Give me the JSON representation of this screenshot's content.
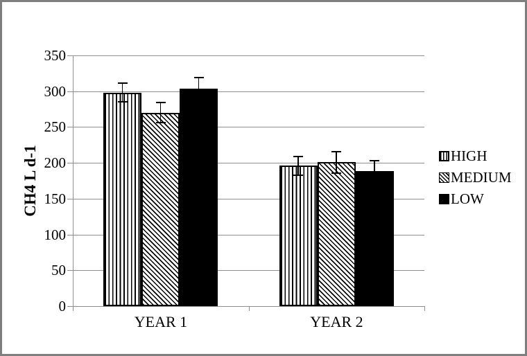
{
  "chart_data": {
    "type": "bar",
    "title": "",
    "ylabel": "CH4 L d-1",
    "xlabel": "",
    "categories": [
      "YEAR 1",
      "YEAR 2"
    ],
    "series": [
      {
        "name": "HIGH",
        "pattern": "vertical-stripes",
        "values": [
          298,
          196
        ],
        "errors": [
          13,
          13
        ]
      },
      {
        "name": "MEDIUM",
        "pattern": "diagonal-stripes",
        "values": [
          270,
          201
        ],
        "errors": [
          14,
          15
        ]
      },
      {
        "name": "LOW",
        "pattern": "solid-black",
        "values": [
          304,
          189
        ],
        "errors": [
          15,
          14
        ]
      }
    ],
    "ylim": [
      0,
      350
    ],
    "yticks": [
      0,
      50,
      100,
      150,
      200,
      250,
      300,
      350
    ],
    "grid": true,
    "error_bars": true,
    "legend_position": "right"
  },
  "colors": {
    "bar_fill": "#000000",
    "gridline": "#8e8e8e",
    "axis": "#8e8e8e",
    "frame_border": "#7f7f7f",
    "background": "#ffffff",
    "text": "#000000"
  }
}
